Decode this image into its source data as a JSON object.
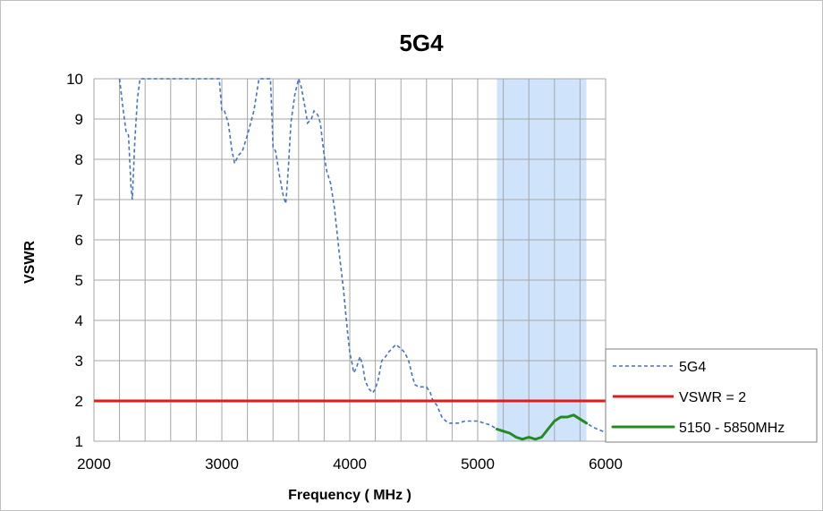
{
  "chart_data": {
    "type": "line",
    "title": "5G4",
    "xlabel": "Frequency ( MHz )",
    "ylabel": "VSWR",
    "xlim": [
      2000,
      6000
    ],
    "ylim": [
      1,
      10
    ],
    "x_ticks": [
      "2000",
      "3000",
      "4000",
      "5000",
      "6000"
    ],
    "y_ticks": [
      "1",
      "2",
      "3",
      "4",
      "5",
      "6",
      "7",
      "8",
      "9",
      "10"
    ],
    "x_grid_step": 200,
    "grid": true,
    "legend_position": "right",
    "highlight_band": {
      "x": [
        5150,
        5850
      ],
      "color": "#cfe4fa"
    },
    "series": [
      {
        "name": "5G4",
        "color": "#4472c4",
        "style": "dashed",
        "x": [
          2200,
          2230,
          2250,
          2270,
          2290,
          2300,
          2320,
          2340,
          2360,
          2380,
          2980,
          3000,
          3020,
          3050,
          3080,
          3100,
          3130,
          3160,
          3200,
          3250,
          3290,
          3330,
          3350,
          3380,
          3390,
          3400,
          3420,
          3450,
          3480,
          3500,
          3520,
          3540,
          3570,
          3600,
          3620,
          3650,
          3670,
          3700,
          3720,
          3750,
          3770,
          3800,
          3820,
          3850,
          3880,
          3900,
          3920,
          3950,
          3980,
          4000,
          4020,
          4030,
          4050,
          4080,
          4100,
          4120,
          4150,
          4180,
          4200,
          4220,
          4250,
          4280,
          4300,
          4330,
          4360,
          4380,
          4400,
          4430,
          4460,
          4490,
          4510,
          4540,
          4570,
          4600,
          4630,
          4650,
          4680,
          4700,
          4720,
          4750,
          4780,
          4800,
          4850,
          4900,
          4950,
          5000,
          5050,
          5100,
          5150,
          5200,
          5250,
          5300,
          5350,
          5400,
          5450,
          5500,
          5550,
          5600,
          5650,
          5700,
          5750,
          5800,
          5850,
          5900,
          5950,
          6000
        ],
        "y": [
          10.1,
          9.2,
          8.7,
          8.6,
          7.3,
          7.0,
          8.5,
          9.5,
          10.0,
          10.1,
          10.1,
          9.2,
          9.2,
          8.9,
          8.2,
          7.9,
          8.1,
          8.2,
          8.6,
          9.2,
          10.0,
          10.1,
          10.1,
          10.1,
          9.2,
          8.3,
          8.2,
          7.6,
          7.1,
          6.9,
          7.8,
          8.9,
          9.6,
          10.1,
          9.8,
          9.3,
          8.9,
          9.0,
          9.2,
          9.1,
          8.9,
          8.1,
          7.7,
          7.4,
          6.8,
          6.2,
          5.6,
          4.8,
          3.8,
          3.2,
          2.9,
          2.7,
          2.8,
          3.1,
          2.9,
          2.5,
          2.3,
          2.2,
          2.3,
          2.5,
          3.0,
          3.1,
          3.2,
          3.3,
          3.4,
          3.35,
          3.3,
          3.2,
          3.0,
          2.6,
          2.4,
          2.35,
          2.35,
          2.35,
          2.2,
          2.0,
          1.9,
          1.75,
          1.6,
          1.5,
          1.45,
          1.45,
          1.45,
          1.5,
          1.5,
          1.5,
          1.45,
          1.4,
          1.3,
          1.25,
          1.2,
          1.1,
          1.05,
          1.1,
          1.05,
          1.1,
          1.3,
          1.5,
          1.6,
          1.6,
          1.65,
          1.55,
          1.45,
          1.35,
          1.28,
          1.22
        ]
      },
      {
        "name": "VSWR = 2",
        "color": "#e31a1c",
        "style": "solid",
        "x": [
          2000,
          6000
        ],
        "y": [
          2,
          2
        ]
      },
      {
        "name": "5150 - 5850MHz",
        "color": "#228b22",
        "style": "solid",
        "x": [
          5150,
          5200,
          5250,
          5300,
          5350,
          5400,
          5450,
          5500,
          5550,
          5600,
          5650,
          5700,
          5750,
          5800,
          5850
        ],
        "y": [
          1.3,
          1.25,
          1.2,
          1.1,
          1.05,
          1.1,
          1.05,
          1.1,
          1.3,
          1.5,
          1.6,
          1.6,
          1.65,
          1.55,
          1.45
        ]
      }
    ]
  }
}
